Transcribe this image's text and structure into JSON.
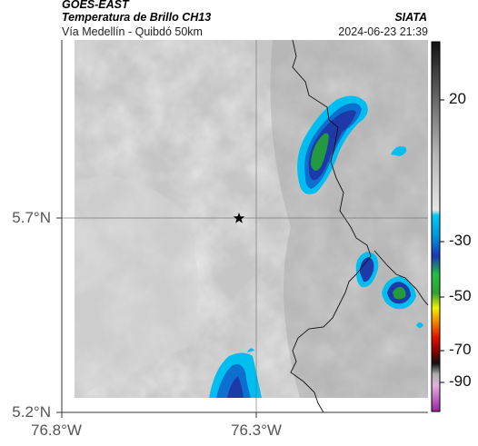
{
  "header": {
    "satellite": "GOES-EAST",
    "product": "Temperatura de Brillo CH13",
    "route": "Vía Medellín - Quibdó 50km",
    "organization": "SIATA",
    "datetime": "2024-06-23 21:39"
  },
  "map": {
    "lat_labels": [
      "5.7°N",
      "5.2°N"
    ],
    "lon_labels": [
      "76.8°W",
      "76.3°W"
    ],
    "marker": "star-marker"
  },
  "colorbar": {
    "tick_labels": [
      "20",
      "-30",
      "-50",
      "-70",
      "-90"
    ],
    "colors": [
      "#1a1a1a",
      "#8c8c8c",
      "#d9d9d9",
      "#00c0f0",
      "#1030c0",
      "#20a020",
      "#f0f000",
      "#e02000",
      "#202020",
      "#c040c0"
    ]
  }
}
